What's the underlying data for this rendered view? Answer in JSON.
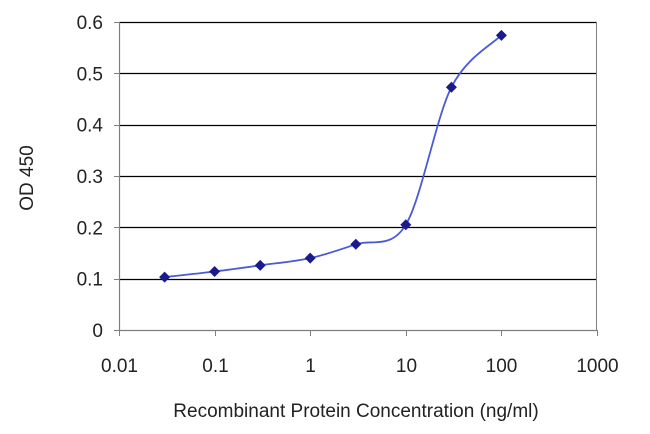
{
  "chart_data": {
    "type": "line",
    "title": "",
    "xlabel": "Recombinant Protein Concentration (ng/ml)",
    "ylabel": "OD 450",
    "x_scale": "log",
    "xlim": [
      0.01,
      1000
    ],
    "ylim": [
      0,
      0.6
    ],
    "x_tick_labels": [
      "0.01",
      "0.1",
      "1",
      "10",
      "100",
      "1000"
    ],
    "x_tick_values": [
      0.01,
      0.1,
      1,
      10,
      100,
      1000
    ],
    "y_tick_labels": [
      "0",
      "0.1",
      "0.2",
      "0.3",
      "0.4",
      "0.5",
      "0.6"
    ],
    "y_tick_values": [
      0,
      0.1,
      0.2,
      0.3,
      0.4,
      0.5,
      0.6
    ],
    "grid": "horizontal",
    "legend": "none",
    "series": [
      {
        "color": "#1a1a8c",
        "marker": "diamond",
        "x": [
          0.03,
          0.1,
          0.3,
          1,
          3,
          10,
          30,
          100
        ],
        "y": [
          0.103,
          0.114,
          0.126,
          0.14,
          0.167,
          0.205,
          0.473,
          0.574
        ]
      }
    ],
    "colors": {
      "line": "#4a5bd4",
      "marker": "#1a1a8c",
      "grid": "#000000",
      "axis": "#7f7f7f"
    }
  }
}
